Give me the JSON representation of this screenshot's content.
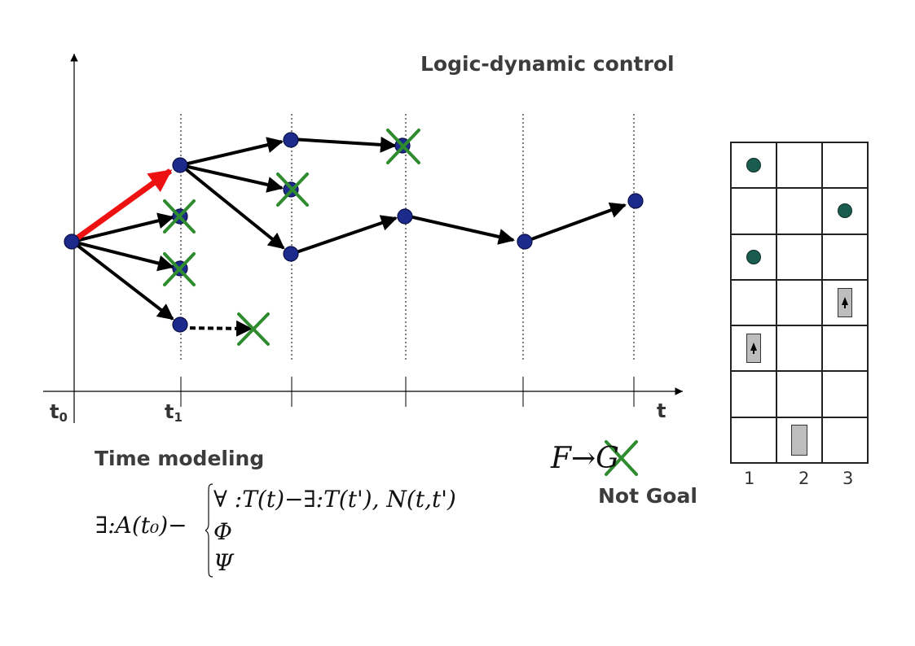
{
  "title": "Logic-dynamic control",
  "axis": {
    "t0_main": "t",
    "t0_sub": "0",
    "t1_main": "t",
    "t1_sub": "1",
    "t_end": "t"
  },
  "time_modeling_label": "Time modeling",
  "not_goal_label": "Not Goal",
  "formula_goal": "F→G",
  "formula_time": {
    "head": "∃:A(t₀)−",
    "line1": "∀ :T(t)−∃:T(t'), N(t,t')",
    "line2": "Φ",
    "line3": "Ψ"
  },
  "grid": {
    "columns": [
      "1",
      "2",
      "3"
    ],
    "rows": [
      [
        "dot",
        "",
        ""
      ],
      [
        "",
        "",
        "dot"
      ],
      [
        "dot",
        "",
        ""
      ],
      [
        "",
        "",
        "robot-up"
      ],
      [
        "robot-up",
        "",
        ""
      ],
      [
        "",
        "",
        ""
      ],
      [
        "",
        "block",
        ""
      ]
    ]
  },
  "colors": {
    "node_fill": "#1c2a8c",
    "reject_cross": "#2e8b2e",
    "highlight_arrow": "#ee1111",
    "grid_dot": "#1a5c50"
  },
  "icons": {
    "rejected": "x-cross-icon",
    "node": "node-dot-icon"
  }
}
